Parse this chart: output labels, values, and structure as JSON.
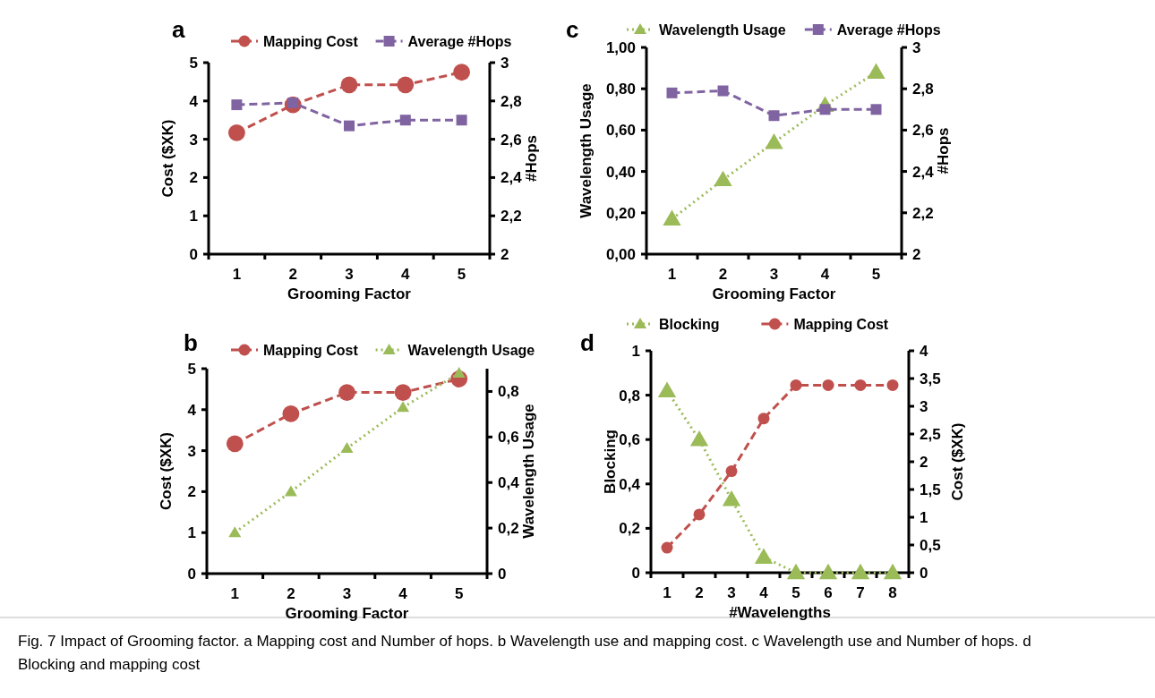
{
  "chart_data": [
    {
      "type": "line",
      "title": "a",
      "xlabel": "Grooming Factor",
      "ylabel": "Cost ($XK)",
      "y2label": "#Hops",
      "categories": [
        "1",
        "2",
        "3",
        "4",
        "5"
      ],
      "series": [
        {
          "name": "Mapping Cost",
          "color": "#c0504d",
          "values": [
            3.17,
            3.9,
            4.42,
            4.42,
            4.75
          ],
          "marker": "circle",
          "line_style": "dashed"
        },
        {
          "name": "Average #Hops",
          "color": "#8064a2",
          "values": [
            2.78,
            2.79,
            2.67,
            2.7,
            2.7
          ],
          "axis": "y2",
          "marker": "square",
          "line_style": "dashed"
        }
      ],
      "ylim": [
        0,
        5
      ],
      "yticks": [
        0,
        1,
        2,
        3,
        4,
        5
      ],
      "y2lim": [
        2,
        3
      ],
      "y2ticks": [
        2,
        {
          "value": 2.2,
          "label": "2,2"
        },
        {
          "value": 2.4,
          "label": "2,4"
        },
        {
          "value": 2.6,
          "label": "2,6"
        },
        {
          "value": 2.8,
          "label": "2,8"
        },
        3
      ],
      "legend": "top",
      "grid": false
    },
    {
      "type": "line",
      "title": "c",
      "xlabel": "Grooming Factor",
      "ylabel": "Wavelength Usage",
      "y2label": "#Hops",
      "categories": [
        "1",
        "2",
        "3",
        "4",
        "5"
      ],
      "series": [
        {
          "name": "Wavelength Usage",
          "color": "#9bbb59",
          "values": [
            0.17,
            0.36,
            0.54,
            0.72,
            0.88
          ],
          "marker": "triangle",
          "line_style": "dotted"
        },
        {
          "name": "Average #Hops",
          "color": "#8064a2",
          "values": [
            2.78,
            2.79,
            2.67,
            2.7,
            2.7
          ],
          "axis": "y2",
          "marker": "square",
          "line_style": "dashed"
        }
      ],
      "ylim": [
        0,
        1
      ],
      "yticks": [
        {
          "value": 0,
          "label": "0,00"
        },
        {
          "value": 0.2,
          "label": "0,20"
        },
        {
          "value": 0.4,
          "label": "0,40"
        },
        {
          "value": 0.6,
          "label": "0,60"
        },
        {
          "value": 0.8,
          "label": "0,80"
        },
        {
          "value": 1,
          "label": "1,00"
        }
      ],
      "y2lim": [
        2,
        3
      ],
      "y2ticks": [
        2,
        {
          "value": 2.2,
          "label": "2,2"
        },
        {
          "value": 2.4,
          "label": "2,4"
        },
        {
          "value": 2.6,
          "label": "2,6"
        },
        {
          "value": 2.8,
          "label": "2,8"
        },
        3
      ],
      "legend": "top",
      "grid": false
    },
    {
      "type": "line",
      "title": "b",
      "xlabel": "Grooming Factor",
      "ylabel": "Cost ($XK)",
      "y2label": "Wavelength Usage",
      "categories": [
        "1",
        "2",
        "3",
        "4",
        "5"
      ],
      "series": [
        {
          "name": "Mapping Cost",
          "color": "#c0504d",
          "values": [
            3.17,
            3.9,
            4.42,
            4.42,
            4.75
          ],
          "marker": "circle",
          "line_style": "dashed"
        },
        {
          "name": "Wavelength Usage",
          "color": "#9bbb59",
          "values": [
            0.18,
            0.36,
            0.55,
            0.73,
            0.88
          ],
          "axis": "y2",
          "marker": "triangle",
          "line_style": "dotted"
        }
      ],
      "ylim": [
        0,
        5
      ],
      "yticks": [
        0,
        1,
        2,
        3,
        4,
        5
      ],
      "y2lim": [
        0,
        0.9
      ],
      "y2ticks": [
        0,
        {
          "value": 0.2,
          "label": "0,2"
        },
        {
          "value": 0.4,
          "label": "0,4"
        },
        {
          "value": 0.6,
          "label": "0,6"
        },
        {
          "value": 0.8,
          "label": "0,8"
        }
      ],
      "legend": "top",
      "grid": false
    },
    {
      "type": "line",
      "title": "d",
      "xlabel": "#Wavelengths",
      "ylabel": "Blocking",
      "y2label": "Cost ($XK)",
      "categories": [
        "1",
        "2",
        "3",
        "4",
        "5",
        "6",
        "7",
        "8"
      ],
      "series": [
        {
          "name": "Blocking",
          "color": "#9bbb59",
          "values": [
            0.82,
            0.6,
            0.33,
            0.07,
            0,
            0,
            0,
            0
          ],
          "marker": "triangle",
          "line_style": "dotted"
        },
        {
          "name": "Mapping Cost",
          "color": "#c0504d",
          "values": [
            0.45,
            1.05,
            1.83,
            2.78,
            3.38,
            3.38,
            3.38,
            3.38
          ],
          "axis": "y2",
          "marker": "circle",
          "line_style": "dashed"
        }
      ],
      "ylim": [
        0,
        1
      ],
      "yticks": [
        0,
        {
          "value": 0.2,
          "label": "0,2"
        },
        {
          "value": 0.4,
          "label": "0,4"
        },
        {
          "value": 0.6,
          "label": "0,6"
        },
        {
          "value": 0.8,
          "label": "0,8"
        },
        1
      ],
      "y2lim": [
        0,
        4
      ],
      "y2ticks": [
        0,
        {
          "value": 0.5,
          "label": "0,5"
        },
        1,
        {
          "value": 1.5,
          "label": "1,5"
        },
        2,
        {
          "value": 2.5,
          "label": "2,5"
        },
        3,
        {
          "value": 3.5,
          "label": "3,5"
        },
        4
      ],
      "legend": "top",
      "grid": false,
      "annotations": [
        "Fig. 7 Impact of Grooming factor. a Mapping cost and Number of hops. b Wavelength use and mapping cost. c Wavelength use and Number of hops. d Blocking and mapping cost"
      ]
    }
  ]
}
